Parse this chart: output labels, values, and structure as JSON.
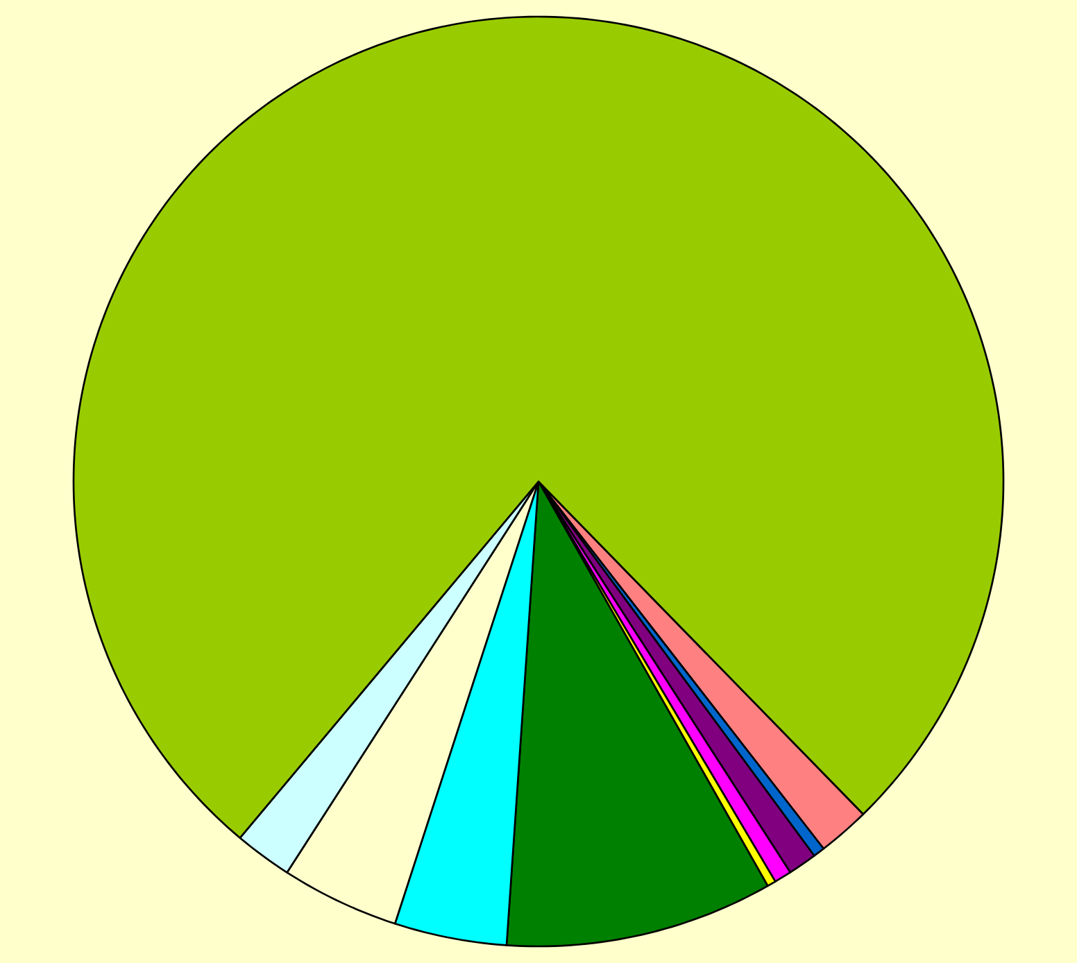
{
  "chart_data": {
    "type": "pie",
    "categories": [
      null,
      null,
      null,
      null,
      null,
      null,
      null,
      null,
      null,
      null
    ],
    "values": [
      1.8,
      0.4,
      1.0,
      0.6,
      0.3,
      9.3,
      3.9,
      4.1,
      2.0,
      76.6
    ],
    "colors": [
      "#ff8080",
      "#0066cc",
      "#800080",
      "#ff00ff",
      "#ffff00",
      "#008000",
      "#00ffff",
      "#ffffcc",
      "#ccffff",
      "#99cc00"
    ]
  }
}
